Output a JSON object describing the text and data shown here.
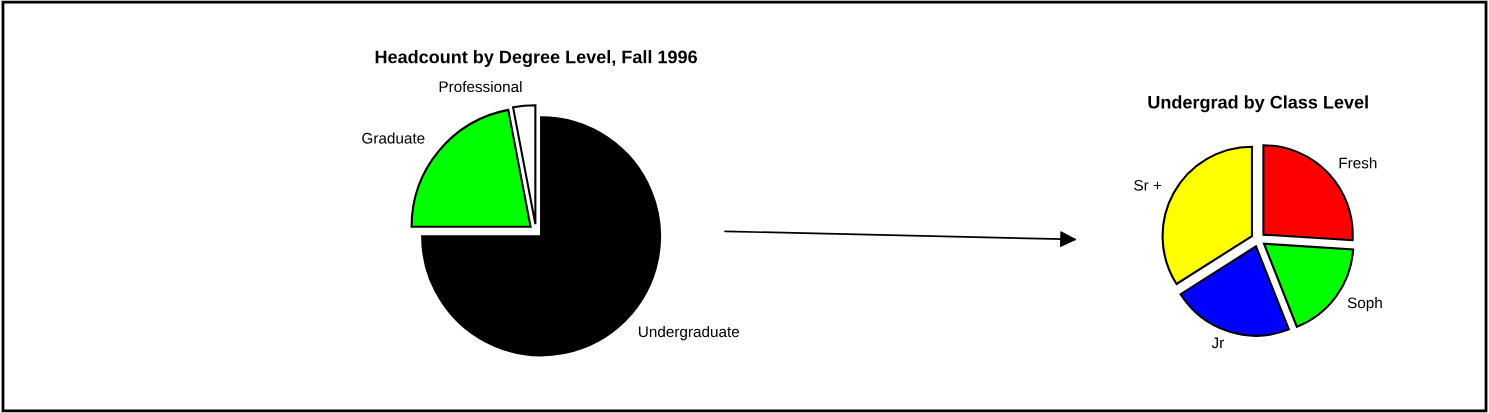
{
  "chart_data": [
    {
      "type": "pie",
      "title": "Headcount by Degree Level, Fall 1996",
      "categories": [
        "Undergraduate",
        "Graduate",
        "Professional"
      ],
      "values": [
        75,
        22,
        3
      ],
      "colors": [
        "#000000",
        "#00ff00",
        "#ffffff"
      ]
    },
    {
      "type": "pie",
      "title": "Undergrad by Class Level",
      "categories": [
        "Fresh",
        "Soph",
        "Jr",
        "Sr +"
      ],
      "values": [
        26,
        18,
        22,
        34
      ],
      "colors": [
        "#ff0000",
        "#00ff00",
        "#0000ff",
        "#ffff00"
      ]
    }
  ]
}
